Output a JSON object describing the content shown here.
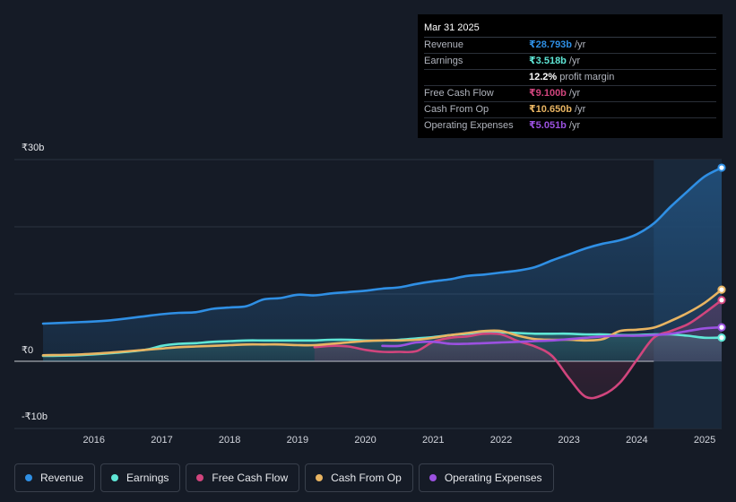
{
  "chart_data": {
    "type": "line",
    "title": "",
    "currency_note": "₹",
    "y_ticks": [
      {
        "value": 30,
        "label": "₹30b"
      },
      {
        "value": 0,
        "label": "₹0"
      },
      {
        "value": -10,
        "label": "-₹10b"
      }
    ],
    "ylim": [
      -10,
      30
    ],
    "xlim": [
      2015.3,
      2025.25
    ],
    "x_ticks": [
      "2016",
      "2017",
      "2018",
      "2019",
      "2020",
      "2021",
      "2022",
      "2023",
      "2024",
      "2025"
    ],
    "forecast_shade_from": 2024.25,
    "series": [
      {
        "name": "Revenue",
        "color": "#2f8fe4",
        "fill": true,
        "points": [
          [
            2015.25,
            5.6
          ],
          [
            2015.75,
            5.8
          ],
          [
            2016.25,
            6.1
          ],
          [
            2016.75,
            6.7
          ],
          [
            2017.0,
            7.0
          ],
          [
            2017.25,
            7.2
          ],
          [
            2017.5,
            7.3
          ],
          [
            2017.75,
            7.8
          ],
          [
            2018.0,
            8.0
          ],
          [
            2018.25,
            8.2
          ],
          [
            2018.5,
            9.2
          ],
          [
            2018.75,
            9.4
          ],
          [
            2019.0,
            9.9
          ],
          [
            2019.25,
            9.8
          ],
          [
            2019.5,
            10.1
          ],
          [
            2019.75,
            10.3
          ],
          [
            2020.0,
            10.5
          ],
          [
            2020.25,
            10.8
          ],
          [
            2020.5,
            11.0
          ],
          [
            2020.75,
            11.5
          ],
          [
            2021.0,
            11.9
          ],
          [
            2021.25,
            12.2
          ],
          [
            2021.5,
            12.7
          ],
          [
            2021.75,
            12.9
          ],
          [
            2022.0,
            13.2
          ],
          [
            2022.25,
            13.5
          ],
          [
            2022.5,
            14.0
          ],
          [
            2022.75,
            15.0
          ],
          [
            2023.0,
            15.9
          ],
          [
            2023.25,
            16.8
          ],
          [
            2023.5,
            17.5
          ],
          [
            2023.75,
            18.0
          ],
          [
            2024.0,
            18.9
          ],
          [
            2024.25,
            20.5
          ],
          [
            2024.5,
            23.0
          ],
          [
            2024.75,
            25.3
          ],
          [
            2025.0,
            27.5
          ],
          [
            2025.25,
            28.793
          ]
        ]
      },
      {
        "name": "Earnings",
        "color": "#5fe6d6",
        "fill": true,
        "points": [
          [
            2015.25,
            0.8
          ],
          [
            2015.75,
            0.9
          ],
          [
            2016.25,
            1.2
          ],
          [
            2016.75,
            1.7
          ],
          [
            2017.0,
            2.3
          ],
          [
            2017.25,
            2.6
          ],
          [
            2017.5,
            2.7
          ],
          [
            2017.75,
            2.9
          ],
          [
            2018.0,
            3.0
          ],
          [
            2018.25,
            3.1
          ],
          [
            2018.5,
            3.1
          ],
          [
            2018.75,
            3.1
          ],
          [
            2019.0,
            3.1
          ],
          [
            2019.25,
            3.1
          ],
          [
            2019.5,
            3.2
          ],
          [
            2019.75,
            3.2
          ],
          [
            2020.0,
            3.1
          ],
          [
            2020.25,
            3.1
          ],
          [
            2020.5,
            3.2
          ],
          [
            2020.75,
            3.4
          ],
          [
            2021.0,
            3.6
          ],
          [
            2021.25,
            3.9
          ],
          [
            2021.5,
            4.1
          ],
          [
            2021.75,
            4.3
          ],
          [
            2022.0,
            4.3
          ],
          [
            2022.25,
            4.2
          ],
          [
            2022.5,
            4.1
          ],
          [
            2022.75,
            4.1
          ],
          [
            2023.0,
            4.1
          ],
          [
            2023.25,
            4.0
          ],
          [
            2023.5,
            4.0
          ],
          [
            2023.75,
            3.9
          ],
          [
            2024.0,
            3.9
          ],
          [
            2024.25,
            4.0
          ],
          [
            2024.5,
            4.0
          ],
          [
            2024.75,
            3.8
          ],
          [
            2025.0,
            3.5
          ],
          [
            2025.25,
            3.518
          ]
        ]
      },
      {
        "name": "Free Cash Flow",
        "color": "#d1457d",
        "fill": true,
        "points": [
          [
            2019.25,
            2.1
          ],
          [
            2019.5,
            2.3
          ],
          [
            2019.75,
            2.2
          ],
          [
            2020.0,
            1.7
          ],
          [
            2020.25,
            1.4
          ],
          [
            2020.5,
            1.4
          ],
          [
            2020.75,
            1.5
          ],
          [
            2021.0,
            2.9
          ],
          [
            2021.25,
            3.5
          ],
          [
            2021.5,
            3.7
          ],
          [
            2021.75,
            4.1
          ],
          [
            2022.0,
            4.0
          ],
          [
            2022.25,
            3.0
          ],
          [
            2022.5,
            2.2
          ],
          [
            2022.75,
            0.8
          ],
          [
            2023.0,
            -2.5
          ],
          [
            2023.25,
            -5.3
          ],
          [
            2023.5,
            -5.0
          ],
          [
            2023.75,
            -3.2
          ],
          [
            2024.0,
            0.2
          ],
          [
            2024.25,
            3.5
          ],
          [
            2024.5,
            4.5
          ],
          [
            2024.75,
            5.5
          ],
          [
            2025.0,
            7.2
          ],
          [
            2025.25,
            9.1
          ]
        ]
      },
      {
        "name": "Cash From Op",
        "color": "#e8b462",
        "fill": false,
        "points": [
          [
            2015.25,
            0.9
          ],
          [
            2015.75,
            1.0
          ],
          [
            2016.25,
            1.3
          ],
          [
            2016.75,
            1.7
          ],
          [
            2017.0,
            1.9
          ],
          [
            2017.25,
            2.1
          ],
          [
            2017.5,
            2.2
          ],
          [
            2017.75,
            2.3
          ],
          [
            2018.0,
            2.4
          ],
          [
            2018.25,
            2.5
          ],
          [
            2018.5,
            2.5
          ],
          [
            2018.75,
            2.5
          ],
          [
            2019.0,
            2.4
          ],
          [
            2019.25,
            2.4
          ],
          [
            2019.5,
            2.6
          ],
          [
            2019.75,
            2.8
          ],
          [
            2020.0,
            3.0
          ],
          [
            2020.25,
            3.1
          ],
          [
            2020.5,
            3.1
          ],
          [
            2020.75,
            3.2
          ],
          [
            2021.0,
            3.5
          ],
          [
            2021.25,
            3.9
          ],
          [
            2021.5,
            4.2
          ],
          [
            2021.75,
            4.5
          ],
          [
            2022.0,
            4.5
          ],
          [
            2022.25,
            3.8
          ],
          [
            2022.5,
            3.3
          ],
          [
            2022.75,
            3.2
          ],
          [
            2023.0,
            3.2
          ],
          [
            2023.25,
            3.1
          ],
          [
            2023.5,
            3.3
          ],
          [
            2023.75,
            4.5
          ],
          [
            2024.0,
            4.7
          ],
          [
            2024.25,
            5.0
          ],
          [
            2024.5,
            6.0
          ],
          [
            2024.75,
            7.2
          ],
          [
            2025.0,
            8.7
          ],
          [
            2025.25,
            10.65
          ]
        ]
      },
      {
        "name": "Operating Expenses",
        "color": "#9b51e0",
        "fill": false,
        "points": [
          [
            2020.25,
            2.3
          ],
          [
            2020.5,
            2.3
          ],
          [
            2020.75,
            2.8
          ],
          [
            2021.0,
            2.9
          ],
          [
            2021.25,
            2.6
          ],
          [
            2021.5,
            2.6
          ],
          [
            2021.75,
            2.7
          ],
          [
            2022.0,
            2.8
          ],
          [
            2022.25,
            2.9
          ],
          [
            2022.5,
            3.0
          ],
          [
            2022.75,
            3.1
          ],
          [
            2023.0,
            3.3
          ],
          [
            2023.25,
            3.5
          ],
          [
            2023.5,
            3.7
          ],
          [
            2023.75,
            3.8
          ],
          [
            2024.0,
            3.8
          ],
          [
            2024.25,
            3.9
          ],
          [
            2024.5,
            4.1
          ],
          [
            2024.75,
            4.5
          ],
          [
            2025.0,
            4.9
          ],
          [
            2025.25,
            5.051
          ]
        ]
      }
    ]
  },
  "tooltip": {
    "date": "Mar 31 2025",
    "rows": [
      {
        "label": "Revenue",
        "value": "₹28.793b",
        "unit": "/yr",
        "color": "#2f8fe4"
      },
      {
        "label": "Earnings",
        "value": "₹3.518b",
        "unit": "/yr",
        "color": "#5fe6d6"
      },
      {
        "label": "",
        "value": "12.2%",
        "unit": "profit margin",
        "color": "#ffffff"
      },
      {
        "label": "Free Cash Flow",
        "value": "₹9.100b",
        "unit": "/yr",
        "color": "#d1457d"
      },
      {
        "label": "Cash From Op",
        "value": "₹10.650b",
        "unit": "/yr",
        "color": "#e8b462"
      },
      {
        "label": "Operating Expenses",
        "value": "₹5.051b",
        "unit": "/yr",
        "color": "#9b51e0"
      }
    ]
  },
  "legend": [
    {
      "label": "Revenue",
      "color": "#2f8fe4"
    },
    {
      "label": "Earnings",
      "color": "#5fe6d6"
    },
    {
      "label": "Free Cash Flow",
      "color": "#d1457d"
    },
    {
      "label": "Cash From Op",
      "color": "#e8b462"
    },
    {
      "label": "Operating Expenses",
      "color": "#9b51e0"
    }
  ]
}
